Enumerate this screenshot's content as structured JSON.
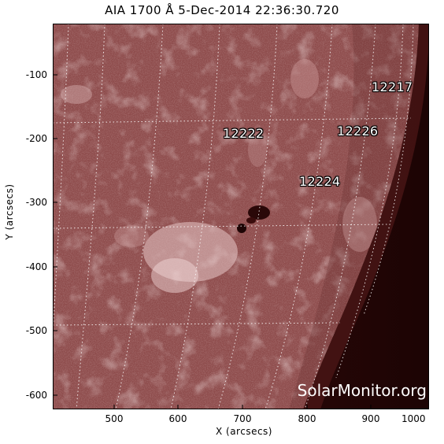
{
  "title": "AIA 1700 Å  5-Dec-2014 22:36:30.720",
  "axes": {
    "xlabel": "X (arcsecs)",
    "ylabel": "Y (arcsecs)",
    "xticks": [
      "500",
      "600",
      "700",
      "800",
      "900",
      "1000"
    ],
    "yticks": [
      "-100",
      "-200",
      "-300",
      "-400",
      "-500",
      "-600"
    ]
  },
  "active_regions": [
    "12217",
    "12222",
    "12226",
    "12224"
  ],
  "watermark": "SolarMonitor.org",
  "colors": {
    "disk": "#8e4c4c",
    "limb_bright": "#a96464",
    "space": "#2a0707"
  }
}
